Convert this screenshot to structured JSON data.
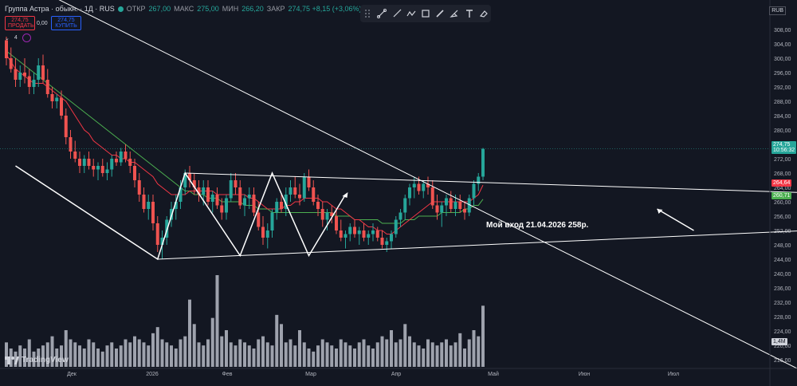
{
  "header": {
    "title": "Группа Астра · обыкн. · 1Д · RUS",
    "open_label": "ОТКР",
    "open_value": "267,00",
    "high_label": "МАКС",
    "high_value": "275,00",
    "low_label": "МИН",
    "low_value": "266,20",
    "close_label": "ЗАКР",
    "close_value": "274,75 +8,15 (+3,06%)"
  },
  "trade": {
    "sell_price": "274,75",
    "sell_label": "ПРОДАТЬ",
    "spread": "0,00",
    "buy_price": "274,75",
    "buy_label": "КУПИТЬ"
  },
  "indicators": {
    "count": "4"
  },
  "toolbar": {
    "icons": [
      "drag-handle-icon",
      "line-tool-icon",
      "ray-tool-icon",
      "path-tool-icon",
      "rectangle-tool-icon",
      "brush-tool-icon",
      "highlighter-icon",
      "text-tool-icon",
      "eraser-icon"
    ]
  },
  "currency": "RUB",
  "brand": "TradingView",
  "annotation": "Мой вход 21.04.2026 258р.",
  "price_labels": {
    "last": "274,75",
    "timer": "10:56:32",
    "ma_red": "264,64",
    "ma_green": "260,71",
    "volume": "1,4M"
  },
  "colors": {
    "background": "#131722",
    "up": "#26a69a",
    "down": "#ef5350",
    "ma_red": "#f23645",
    "ma_green": "#4caf50",
    "lines": "#ffffff"
  },
  "chart_data": {
    "type": "candlestick",
    "y_ticks": [
      "308,00",
      "304,00",
      "300,00",
      "296,00",
      "292,00",
      "288,00",
      "284,00",
      "280,00",
      "276,00",
      "272,00",
      "268,00",
      "264,00",
      "260,00",
      "256,00",
      "252,00",
      "248,00",
      "244,00",
      "240,00",
      "236,00",
      "232,00",
      "228,00",
      "224,00",
      "220,00",
      "216,00"
    ],
    "x_ticks": [
      "Дек",
      "2026",
      "Фев",
      "Мар",
      "Апр",
      "Май",
      "Июн",
      "Июл"
    ],
    "ylim": [
      214,
      310
    ],
    "candles": [
      [
        305,
        306,
        298,
        300
      ],
      [
        300,
        303,
        296,
        297
      ],
      [
        297,
        300,
        292,
        294
      ],
      [
        294,
        298,
        292,
        296
      ],
      [
        296,
        300,
        293,
        295
      ],
      [
        295,
        297,
        290,
        292
      ],
      [
        292,
        296,
        290,
        294
      ],
      [
        294,
        300,
        292,
        298
      ],
      [
        298,
        301,
        293,
        294
      ],
      [
        294,
        297,
        289,
        290
      ],
      [
        290,
        292,
        286,
        288
      ],
      [
        288,
        290,
        286,
        289
      ],
      [
        289,
        291,
        283,
        284
      ],
      [
        284,
        286,
        276,
        278
      ],
      [
        278,
        280,
        272,
        274
      ],
      [
        274,
        277,
        271,
        272
      ],
      [
        272,
        274,
        268,
        270
      ],
      [
        270,
        273,
        268,
        272
      ],
      [
        272,
        274,
        269,
        270
      ],
      [
        270,
        272,
        267,
        269
      ],
      [
        269,
        271,
        266,
        270
      ],
      [
        270,
        272,
        267,
        268
      ],
      [
        268,
        271,
        266,
        269
      ],
      [
        269,
        273,
        267,
        272
      ],
      [
        272,
        274,
        270,
        271
      ],
      [
        271,
        275,
        270,
        274
      ],
      [
        274,
        276,
        271,
        272
      ],
      [
        272,
        274,
        268,
        270
      ],
      [
        270,
        272,
        264,
        266
      ],
      [
        266,
        268,
        260,
        262
      ],
      [
        262,
        264,
        257,
        258
      ],
      [
        258,
        262,
        255,
        260
      ],
      [
        260,
        262,
        252,
        254
      ],
      [
        254,
        256,
        246,
        248
      ],
      [
        248,
        252,
        244,
        250
      ],
      [
        250,
        256,
        248,
        255
      ],
      [
        255,
        260,
        253,
        258
      ],
      [
        258,
        262,
        255,
        260
      ],
      [
        260,
        266,
        258,
        264
      ],
      [
        264,
        269,
        262,
        268
      ],
      [
        268,
        270,
        264,
        266
      ],
      [
        266,
        268,
        262,
        264
      ],
      [
        264,
        266,
        260,
        262
      ],
      [
        262,
        266,
        259,
        264
      ],
      [
        264,
        266,
        259,
        260
      ],
      [
        260,
        263,
        257,
        262
      ],
      [
        262,
        264,
        258,
        259
      ],
      [
        259,
        261,
        255,
        257
      ],
      [
        257,
        262,
        255,
        261
      ],
      [
        261,
        268,
        260,
        266
      ],
      [
        266,
        268,
        262,
        264
      ],
      [
        264,
        266,
        258,
        259
      ],
      [
        259,
        262,
        256,
        261
      ],
      [
        261,
        264,
        258,
        262
      ],
      [
        262,
        264,
        256,
        257
      ],
      [
        257,
        260,
        252,
        253
      ],
      [
        253,
        256,
        248,
        250
      ],
      [
        250,
        254,
        247,
        252
      ],
      [
        252,
        258,
        250,
        257
      ],
      [
        257,
        261,
        255,
        260
      ],
      [
        260,
        262,
        257,
        258
      ],
      [
        258,
        264,
        256,
        262
      ],
      [
        262,
        266,
        260,
        264
      ],
      [
        264,
        267,
        261,
        262
      ],
      [
        262,
        265,
        259,
        261
      ],
      [
        261,
        268,
        260,
        267
      ],
      [
        267,
        269,
        263,
        264
      ],
      [
        264,
        266,
        259,
        260
      ],
      [
        260,
        262,
        256,
        258
      ],
      [
        258,
        260,
        253,
        255
      ],
      [
        255,
        258,
        252,
        257
      ],
      [
        257,
        259,
        254,
        256
      ],
      [
        256,
        258,
        251,
        252
      ],
      [
        252,
        255,
        249,
        250
      ],
      [
        250,
        252,
        247,
        251
      ],
      [
        251,
        254,
        249,
        253
      ],
      [
        253,
        255,
        250,
        251
      ],
      [
        251,
        253,
        248,
        252
      ],
      [
        252,
        254,
        249,
        250
      ],
      [
        250,
        252,
        248,
        251
      ],
      [
        251,
        254,
        249,
        252
      ],
      [
        252,
        253,
        249,
        250
      ],
      [
        250,
        252,
        247,
        248
      ],
      [
        248,
        250,
        246,
        249
      ],
      [
        249,
        252,
        247,
        251
      ],
      [
        251,
        256,
        250,
        255
      ],
      [
        255,
        258,
        253,
        257
      ],
      [
        257,
        262,
        255,
        261
      ],
      [
        261,
        265,
        259,
        264
      ],
      [
        264,
        267,
        261,
        265
      ],
      [
        265,
        267,
        262,
        263
      ],
      [
        263,
        266,
        261,
        265
      ],
      [
        265,
        267,
        262,
        264
      ],
      [
        264,
        266,
        258,
        259
      ],
      [
        259,
        262,
        255,
        257
      ],
      [
        257,
        260,
        253,
        259
      ],
      [
        259,
        262,
        256,
        261
      ],
      [
        261,
        263,
        257,
        258
      ],
      [
        258,
        262,
        256,
        260
      ],
      [
        260,
        262,
        257,
        258
      ],
      [
        258,
        260,
        255,
        257
      ],
      [
        257,
        262,
        256,
        261
      ],
      [
        261,
        266,
        259,
        265
      ],
      [
        265,
        268,
        263,
        267
      ],
      [
        267,
        275,
        266,
        274.75
      ]
    ],
    "volumes": [
      8,
      6,
      5,
      7,
      6,
      9,
      5,
      6,
      7,
      8,
      10,
      6,
      7,
      12,
      9,
      8,
      7,
      6,
      9,
      8,
      6,
      5,
      7,
      8,
      6,
      7,
      9,
      8,
      10,
      9,
      8,
      7,
      11,
      13,
      9,
      8,
      7,
      6,
      9,
      10,
      22,
      14,
      8,
      7,
      9,
      16,
      30,
      10,
      12,
      8,
      7,
      9,
      8,
      7,
      6,
      9,
      10,
      8,
      7,
      17,
      14,
      8,
      9,
      7,
      12,
      8,
      6,
      5,
      7,
      9,
      8,
      7,
      6,
      9,
      8,
      7,
      6,
      8,
      9,
      7,
      6,
      8,
      10,
      9,
      12,
      8,
      9,
      14,
      10,
      8,
      7,
      6,
      9,
      8,
      7,
      8,
      9,
      7,
      8,
      11,
      6,
      9,
      12,
      10,
      20
    ],
    "ma_red": [
      301,
      299,
      297,
      296,
      295,
      294,
      293,
      293,
      293,
      292,
      291,
      290,
      289,
      288,
      286,
      284,
      282,
      280,
      279,
      277,
      276,
      275,
      274,
      273,
      273,
      272,
      272,
      271,
      271,
      270,
      269,
      268,
      267,
      265,
      264,
      263,
      262,
      262,
      262,
      262,
      263,
      263,
      263,
      263,
      263,
      263,
      262,
      262,
      262,
      262,
      262,
      262,
      262,
      261,
      261,
      260,
      259,
      258,
      258,
      258,
      258,
      259,
      259,
      260,
      260,
      261,
      261,
      261,
      261,
      260,
      260,
      259,
      258,
      258,
      257,
      256,
      255,
      255,
      254,
      253,
      253,
      252,
      252,
      251,
      251,
      252,
      253,
      254,
      255,
      256,
      257,
      258,
      259,
      260,
      260,
      260,
      260,
      260,
      260,
      260,
      260,
      260,
      261,
      262,
      264.64
    ],
    "ma_green": [
      302,
      301,
      300,
      299,
      298,
      297,
      296,
      295,
      294,
      293,
      292,
      291,
      290,
      289,
      288,
      287,
      286,
      285,
      284,
      283,
      282,
      281,
      280,
      279,
      278,
      277,
      276,
      275,
      274,
      273,
      272,
      271,
      270,
      269,
      268,
      267,
      266,
      265,
      264,
      263,
      263,
      262,
      262,
      262,
      261,
      261,
      261,
      260,
      260,
      260,
      260,
      260,
      259,
      259,
      259,
      258,
      258,
      258,
      257,
      257,
      257,
      257,
      257,
      257,
      257,
      257,
      257,
      257,
      257,
      257,
      257,
      257,
      256,
      256,
      256,
      256,
      255,
      255,
      255,
      255,
      255,
      255,
      254,
      254,
      254,
      254,
      254,
      255,
      255,
      255,
      256,
      256,
      256,
      256,
      256,
      257,
      257,
      257,
      257,
      257,
      258,
      258,
      259,
      259,
      260.71
    ],
    "patterns": {
      "zigzag": [
        [
          2,
          270
        ],
        [
          33,
          244
        ],
        [
          39,
          268
        ],
        [
          51,
          245
        ],
        [
          58,
          268
        ],
        [
          66,
          245
        ],
        [
          74,
          262
        ]
      ],
      "channel_top": [
        [
          39,
          268
        ],
        [
          175,
          262.5
        ]
      ],
      "channel_bottom": [
        [
          33,
          244
        ],
        [
          175,
          252
        ]
      ],
      "trend_line": [
        [
          -10,
          330
        ],
        [
          175,
          212
        ]
      ],
      "entry_arrow": [
        [
          150,
          252
        ],
        [
          142,
          258
        ]
      ]
    }
  }
}
